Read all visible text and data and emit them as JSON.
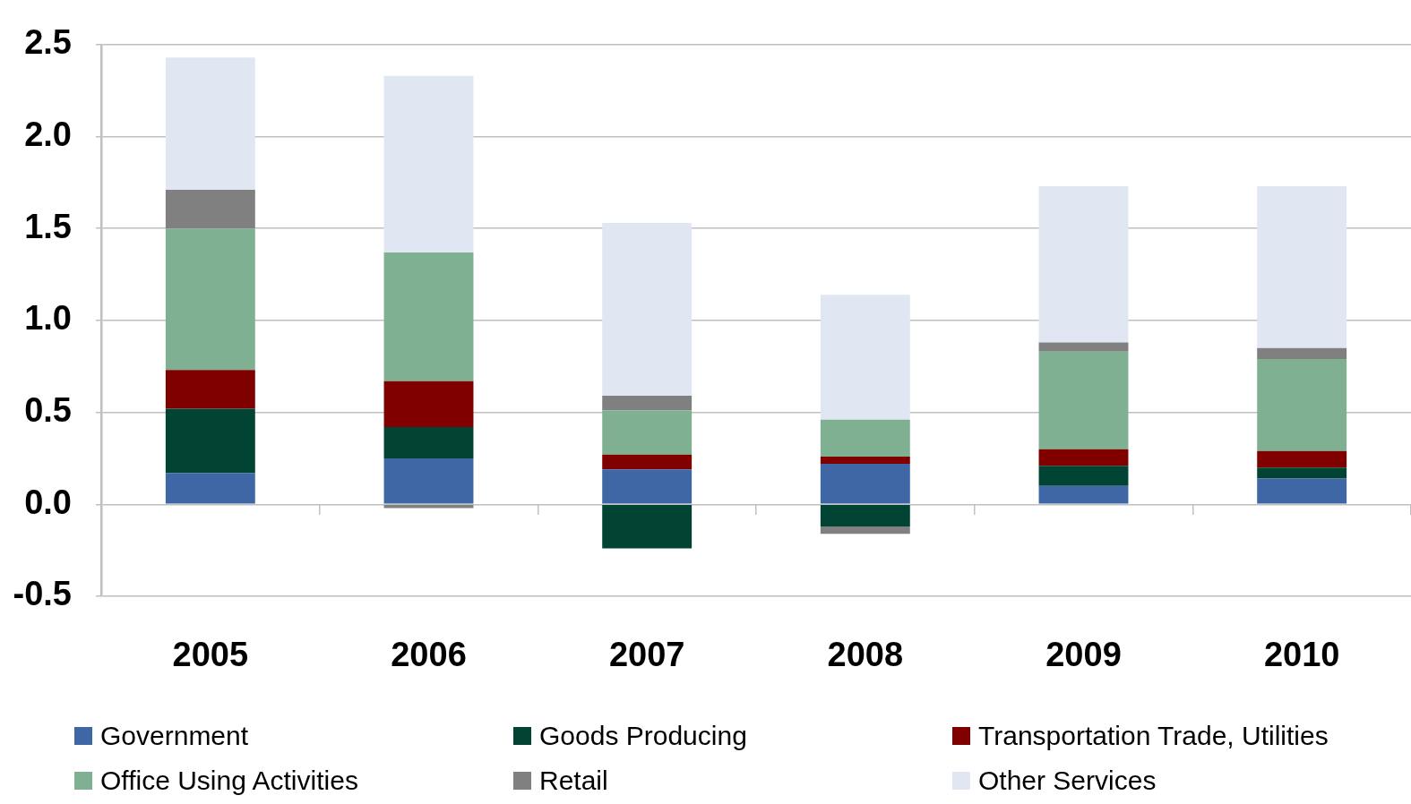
{
  "chart_data": {
    "type": "bar",
    "stacked": true,
    "categories": [
      "2005",
      "2006",
      "2007",
      "2008",
      "2009",
      "2010"
    ],
    "series": [
      {
        "name": "Government",
        "color": "#3f67a6",
        "values": [
          0.17,
          0.25,
          0.19,
          0.22,
          0.1,
          0.14
        ]
      },
      {
        "name": "Goods Producing",
        "color": "#024433",
        "values": [
          0.35,
          0.17,
          -0.24,
          -0.12,
          0.11,
          0.06
        ]
      },
      {
        "name": "Transportation Trade, Utilities",
        "color": "#800000",
        "values": [
          0.21,
          0.25,
          0.08,
          0.04,
          0.09,
          0.09
        ]
      },
      {
        "name": "Office Using Activities",
        "color": "#80b092",
        "values": [
          0.77,
          0.7,
          0.24,
          0.2,
          0.53,
          0.5
        ]
      },
      {
        "name": "Retail",
        "color": "#808080",
        "values": [
          0.21,
          -0.02,
          0.08,
          -0.04,
          0.05,
          0.06
        ]
      },
      {
        "name": "Other Services",
        "color": "#e0e6f2",
        "values": [
          0.72,
          0.96,
          0.94,
          0.68,
          0.85,
          0.88
        ]
      }
    ],
    "ylim": [
      -0.5,
      2.5
    ],
    "yticks": [
      2.5,
      {
        "value": 2,
        "label": "2.0"
      },
      1.5,
      {
        "value": 1,
        "label": "1.0"
      },
      0.5,
      {
        "value": 0,
        "label": "0.0"
      },
      -0.5
    ],
    "grid": "y",
    "legend": "bottom"
  }
}
